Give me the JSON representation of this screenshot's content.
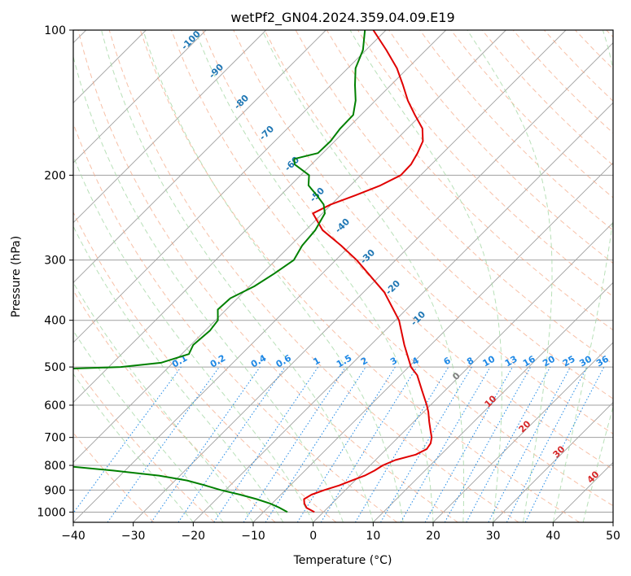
{
  "chart_data": {
    "type": "skew-t",
    "title": "wetPf2_GN04.2024.359.04.09.E19",
    "xlabel": "Temperature (°C)",
    "ylabel": "Pressure (hPa)",
    "xlim": [
      -40,
      50
    ],
    "ylim": [
      1050,
      100
    ],
    "x_ticks": [
      -40,
      -30,
      -20,
      -10,
      0,
      10,
      20,
      30,
      40,
      50
    ],
    "x_tick_labels": [
      "−40",
      "−30",
      "−20",
      "−10",
      "0",
      "10",
      "20",
      "30",
      "40",
      "50"
    ],
    "y_ticks": [
      1000,
      900,
      800,
      700,
      600,
      500,
      400,
      300,
      200,
      100
    ],
    "y_tick_labels": [
      "1000",
      "900",
      "800",
      "700",
      "600",
      "500",
      "400",
      "300",
      "200",
      "100"
    ],
    "log_pressure_axis": true,
    "grid": true,
    "series": [
      {
        "kind": "temperature",
        "color": "#e00000",
        "points": [
          [
            1000,
            -1.5
          ],
          [
            980,
            -3.5
          ],
          [
            960,
            -4.6
          ],
          [
            940,
            -5.4
          ],
          [
            920,
            -4.9
          ],
          [
            900,
            -3.5
          ],
          [
            880,
            -1.8
          ],
          [
            860,
            -0.5
          ],
          [
            840,
            0.8
          ],
          [
            820,
            1.6
          ],
          [
            800,
            2.1
          ],
          [
            780,
            3.3
          ],
          [
            760,
            5.8
          ],
          [
            740,
            6.7
          ],
          [
            720,
            6.4
          ],
          [
            700,
            5.6
          ],
          [
            680,
            4.4
          ],
          [
            650,
            2.6
          ],
          [
            620,
            0.8
          ],
          [
            600,
            -0.6
          ],
          [
            560,
            -3.8
          ],
          [
            520,
            -7.2
          ],
          [
            500,
            -9.6
          ],
          [
            450,
            -14.4
          ],
          [
            400,
            -19.4
          ],
          [
            350,
            -26.5
          ],
          [
            300,
            -36.5
          ],
          [
            280,
            -41.5
          ],
          [
            260,
            -47.2
          ],
          [
            240,
            -51.6
          ],
          [
            230,
            -50.1
          ],
          [
            220,
            -47.5
          ],
          [
            210,
            -45.0
          ],
          [
            200,
            -43.3
          ],
          [
            190,
            -43.4
          ],
          [
            180,
            -44.2
          ],
          [
            170,
            -45.3
          ],
          [
            160,
            -47.5
          ],
          [
            150,
            -51.0
          ],
          [
            140,
            -54.6
          ],
          [
            130,
            -58.0
          ],
          [
            120,
            -61.8
          ],
          [
            110,
            -66.6
          ],
          [
            100,
            -72.1
          ]
        ]
      },
      {
        "kind": "dewpoint",
        "color": "#008000",
        "points": [
          [
            1000,
            -6.0
          ],
          [
            980,
            -8.0
          ],
          [
            960,
            -10.3
          ],
          [
            940,
            -13.3
          ],
          [
            920,
            -16.8
          ],
          [
            900,
            -20.8
          ],
          [
            880,
            -24.2
          ],
          [
            860,
            -28.0
          ],
          [
            840,
            -33.5
          ],
          [
            820,
            -42.0
          ],
          [
            800,
            -52.0
          ],
          [
            780,
            -65.0
          ],
          [
            770,
            -80.0
          ],
          [
            510,
            -78.0
          ],
          [
            500,
            -58.0
          ],
          [
            490,
            -52.0
          ],
          [
            470,
            -48.8
          ],
          [
            450,
            -49.6
          ],
          [
            420,
            -49.2
          ],
          [
            400,
            -49.6
          ],
          [
            380,
            -51.4
          ],
          [
            360,
            -51.2
          ],
          [
            340,
            -49.2
          ],
          [
            320,
            -48.0
          ],
          [
            300,
            -47.0
          ],
          [
            280,
            -48.0
          ],
          [
            260,
            -48.4
          ],
          [
            240,
            -49.6
          ],
          [
            230,
            -51.3
          ],
          [
            220,
            -54.0
          ],
          [
            210,
            -57.0
          ],
          [
            200,
            -58.6
          ],
          [
            190,
            -62.8
          ],
          [
            185,
            -63.8
          ],
          [
            180,
            -60.8
          ],
          [
            170,
            -60.7
          ],
          [
            160,
            -61.2
          ],
          [
            150,
            -61.3
          ],
          [
            140,
            -63.3
          ],
          [
            130,
            -66.0
          ],
          [
            120,
            -68.7
          ],
          [
            110,
            -70.5
          ],
          [
            100,
            -73.5
          ]
        ]
      }
    ],
    "reference_lines": {
      "isotherm_step": 10,
      "dry_adiabat_labels": [
        "-100",
        "-90",
        "-80",
        "-70",
        "-60",
        "-50",
        "-40",
        "-30",
        "-20",
        "-10"
      ],
      "mixing_ratio_labels": [
        "0.1",
        "0.2",
        "0.4",
        "0.6",
        "1",
        "1.5",
        "2",
        "3",
        "4",
        "6",
        "8",
        "10",
        "13",
        "16",
        "20",
        "25",
        "30",
        "36"
      ],
      "moist_adiabat_labels": [
        "0",
        "10",
        "20",
        "30",
        "40"
      ],
      "colors": {
        "isotherm": "#a0a0a0",
        "isobar": "#a0a0a0",
        "dry_adiabat": "#f4a582",
        "moist_adiabat": "#a6d8a6",
        "mixing_ratio": "#1e88e5",
        "dry_label": "#1f77b4",
        "moist_label_zero": "#808080",
        "moist_label": "#d62728"
      }
    }
  }
}
